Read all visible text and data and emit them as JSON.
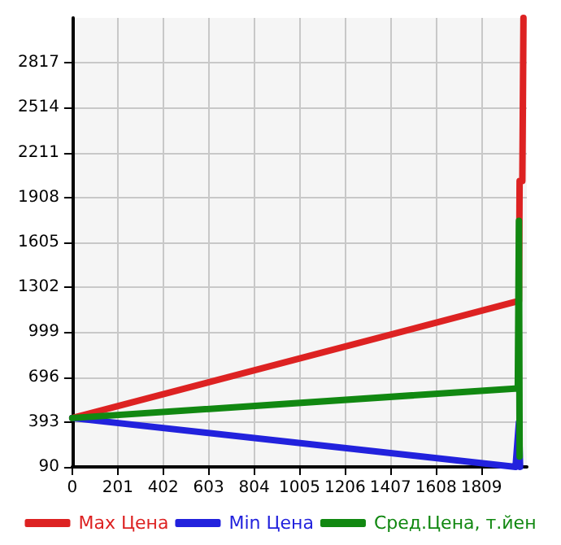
{
  "chart_data": {
    "type": "line",
    "xlim": [
      0,
      2010
    ],
    "xticks": [
      0,
      201,
      402,
      603,
      804,
      1005,
      1206,
      1407,
      1608,
      1809
    ],
    "ylim": [
      90,
      3120
    ],
    "yticks": [
      90,
      393,
      696,
      999,
      1302,
      1605,
      1908,
      2211,
      2514,
      2817
    ],
    "grid": true,
    "legend": "bottom",
    "marker": "none",
    "line_style": "solid",
    "series": [
      {
        "name": "Max Цена",
        "color": "#dd2222",
        "x": [
          0,
          1975,
          1978,
          1990,
          1995
        ],
        "values": [
          420,
          1210,
          2020,
          2020,
          3120
        ]
      },
      {
        "name": "Min Цена",
        "color": "#2222dd",
        "x": [
          0,
          1960,
          1975,
          1980
        ],
        "values": [
          420,
          90,
          390,
          90
        ]
      },
      {
        "name": "Сред.Цена, т.йен",
        "color": "#118811",
        "x": [
          0,
          1970,
          1975,
          1978
        ],
        "values": [
          420,
          620,
          1750,
          160
        ]
      }
    ]
  }
}
